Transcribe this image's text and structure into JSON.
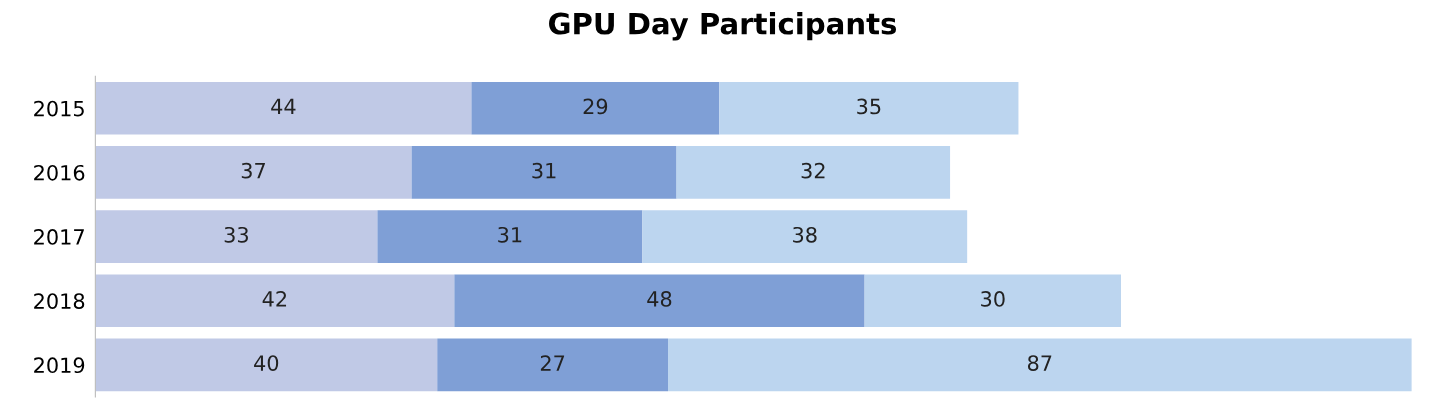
{
  "chart_data": {
    "type": "bar",
    "title": "GPU Day Participants",
    "orientation": "horizontal",
    "stacked": true,
    "data_labels": true,
    "tick_labels": "y",
    "grid": false,
    "legend": false,
    "categories": [
      "2015",
      "2016",
      "2017",
      "2018",
      "2019"
    ],
    "series": [
      {
        "color": "#c0c9e6",
        "values": [
          44,
          37,
          33,
          42,
          40
        ]
      },
      {
        "color": "#7f9fd6",
        "values": [
          29,
          31,
          31,
          48,
          27
        ]
      },
      {
        "color": "#bcd5ef",
        "values": [
          35,
          32,
          38,
          30,
          87
        ]
      }
    ]
  }
}
